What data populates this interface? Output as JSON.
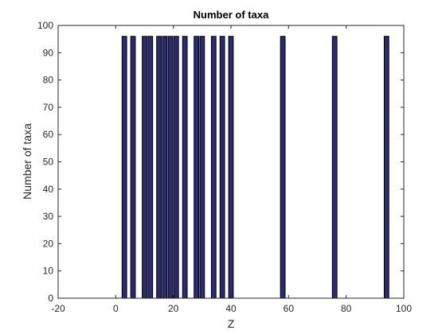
{
  "chart_data": {
    "type": "bar",
    "title": "Number of taxa",
    "xlabel": "Z",
    "ylabel": "Number of taxa",
    "xlim": [
      -20,
      100
    ],
    "ylim": [
      0,
      100
    ],
    "xticks": [
      -20,
      0,
      20,
      40,
      60,
      80,
      100
    ],
    "yticks": [
      0,
      10,
      20,
      30,
      40,
      50,
      60,
      70,
      80,
      90,
      100
    ],
    "bar_width": 1.6,
    "grid": false,
    "series": [
      {
        "x": [
          3,
          6,
          10,
          12,
          15,
          17,
          19,
          21,
          24,
          28,
          30,
          34,
          37,
          40,
          58,
          76,
          94
        ],
        "values": [
          96,
          96,
          96,
          96,
          96,
          96,
          96,
          96,
          96,
          96,
          96,
          96,
          96,
          96,
          96,
          96,
          96
        ]
      }
    ],
    "colors": {
      "bar_fill": "#2b2a72",
      "bar_edge": "#000000",
      "axis": "#262626"
    }
  }
}
